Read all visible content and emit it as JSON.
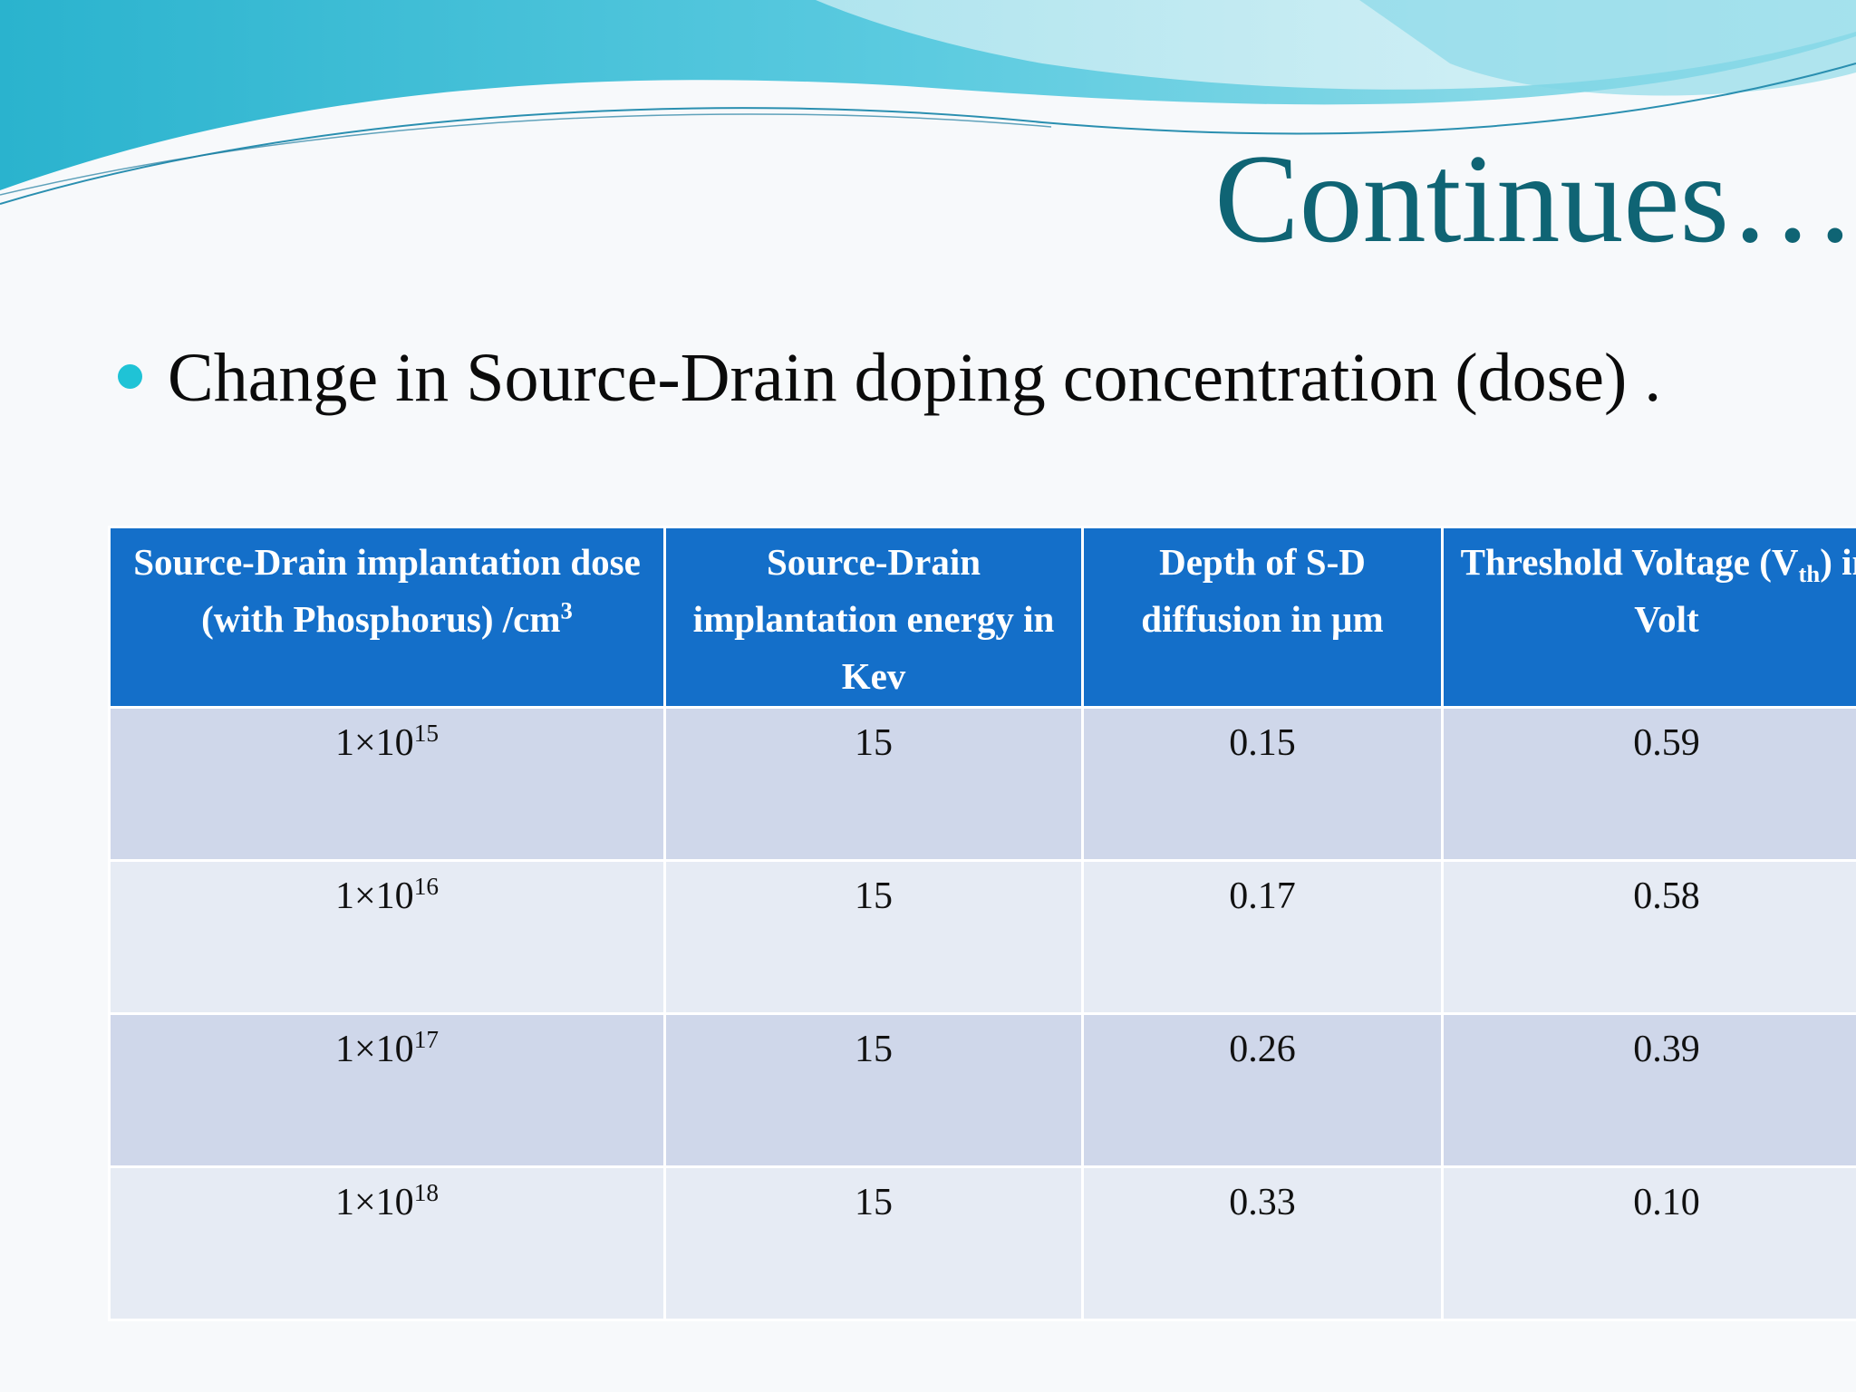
{
  "slide": {
    "title": "Continues…",
    "bullet": "Change in Source-Drain doping concentration (dose) ."
  },
  "colors": {
    "title": "#0f6474",
    "bullet_dot": "#1fc3d6",
    "header_bg": "#146fc9",
    "row_dark": "#cfd7ea",
    "row_light": "#e6ebf4"
  },
  "table": {
    "headers": [
      {
        "text": "Source-Drain implantation dose (with Phosphorus) /cm",
        "sup": "3"
      },
      {
        "text": "Source-Drain implantation energy in Kev"
      },
      {
        "text": "Depth of S-D diffusion in µm"
      },
      {
        "pre": "Threshold Voltage (V",
        "sub": "th",
        "post": ") in Volt"
      }
    ],
    "rows": [
      {
        "dose_base": "1×10",
        "dose_exp": "15",
        "energy": "15",
        "depth": "0.15",
        "vth": "0.59"
      },
      {
        "dose_base": "1×10",
        "dose_exp": "16",
        "energy": "15",
        "depth": "0.17",
        "vth": "0.58"
      },
      {
        "dose_base": "1×10",
        "dose_exp": "17",
        "energy": "15",
        "depth": "0.26",
        "vth": "0.39"
      },
      {
        "dose_base": "1×10",
        "dose_exp": "18",
        "energy": "15",
        "depth": "0.33",
        "vth": "0.10"
      }
    ]
  }
}
